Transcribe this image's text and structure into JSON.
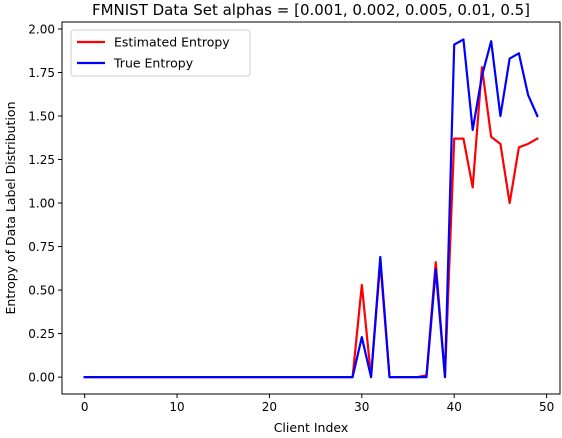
{
  "chart_data": {
    "type": "line",
    "title": "FMNIST Data Set alphas = [0.001, 0.002, 0.005, 0.01, 0.5]",
    "xlabel": "Client Index",
    "ylabel": "Entropy of Data Label Distribution",
    "xlim": [
      -2.45,
      51.45
    ],
    "ylim": [
      -0.097,
      2.04
    ],
    "xticks": [
      0,
      10,
      20,
      30,
      40,
      50
    ],
    "xtick_labels": [
      "0",
      "10",
      "20",
      "30",
      "40",
      "50"
    ],
    "yticks": [
      0.0,
      0.25,
      0.5,
      0.75,
      1.0,
      1.25,
      1.5,
      1.75,
      2.0
    ],
    "ytick_labels": [
      "0.00",
      "0.25",
      "0.50",
      "0.75",
      "1.00",
      "1.25",
      "1.50",
      "1.75",
      "2.00"
    ],
    "grid": false,
    "legend_position": "top-left",
    "x": [
      0,
      1,
      2,
      3,
      4,
      5,
      6,
      7,
      8,
      9,
      10,
      11,
      12,
      13,
      14,
      15,
      16,
      17,
      18,
      19,
      20,
      21,
      22,
      23,
      24,
      25,
      26,
      27,
      28,
      29,
      30,
      31,
      32,
      33,
      34,
      35,
      36,
      37,
      38,
      39,
      40,
      41,
      42,
      43,
      44,
      45,
      46,
      47,
      48,
      49
    ],
    "series": [
      {
        "name": "Estimated Entropy",
        "color": "#ff0000",
        "values": [
          0,
          0,
          0,
          0,
          0,
          0,
          0,
          0,
          0,
          0,
          0,
          0,
          0,
          0,
          0,
          0,
          0,
          0,
          0,
          0,
          0,
          0,
          0,
          0,
          0,
          0,
          0,
          0,
          0,
          0,
          0.53,
          0,
          0.66,
          0,
          0,
          0,
          0,
          0.01,
          0.66,
          0,
          1.37,
          1.37,
          1.09,
          1.78,
          1.38,
          1.34,
          1.0,
          1.32,
          1.34,
          1.37
        ]
      },
      {
        "name": "True Entropy",
        "color": "#0000ff",
        "values": [
          0,
          0,
          0,
          0,
          0,
          0,
          0,
          0,
          0,
          0,
          0,
          0,
          0,
          0,
          0,
          0,
          0,
          0,
          0,
          0,
          0,
          0,
          0,
          0,
          0,
          0,
          0,
          0,
          0,
          0,
          0.23,
          0,
          0.69,
          0,
          0,
          0,
          0,
          0,
          0.62,
          0,
          1.91,
          1.94,
          1.42,
          1.73,
          1.93,
          1.5,
          1.83,
          1.86,
          1.62,
          1.5
        ]
      }
    ]
  }
}
